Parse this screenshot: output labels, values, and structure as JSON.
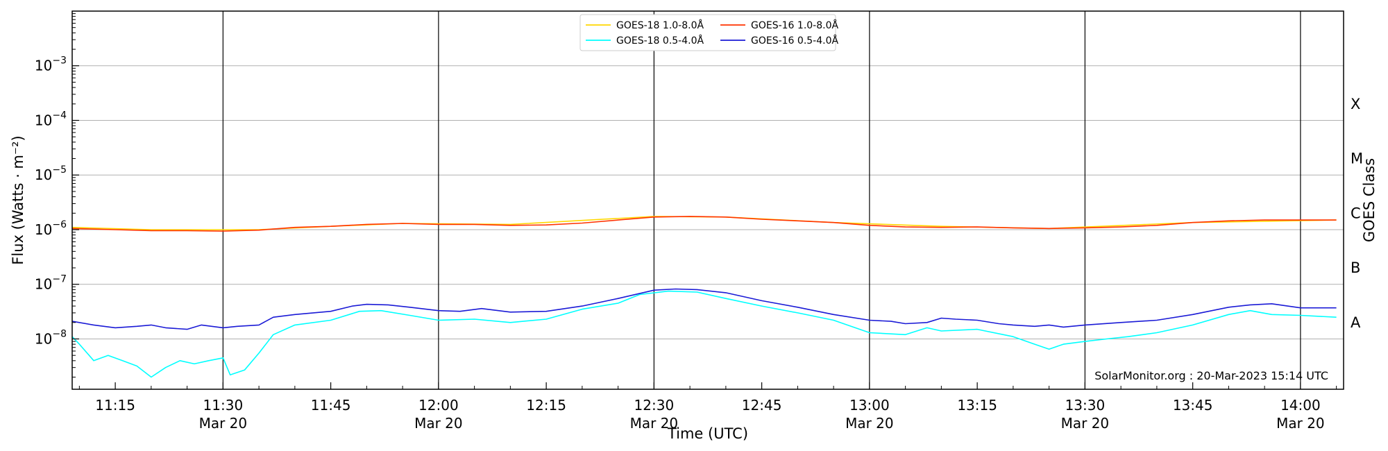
{
  "chart_data": {
    "type": "line",
    "title": "",
    "xlabel": "Time (UTC)",
    "ylabel": "Flux (Watts · m⁻²)",
    "ylabel_right": "GOES Class",
    "yscale": "log",
    "ylim": [
      1.2e-09,
      0.01
    ],
    "xlim": [
      "2023-03-20T11:09",
      "2023-03-20T14:06"
    ],
    "y_ticks": [
      {
        "value": 1e-08,
        "base": "10",
        "exp": "−8"
      },
      {
        "value": 1e-07,
        "base": "10",
        "exp": "−7"
      },
      {
        "value": 1e-06,
        "base": "10",
        "exp": "−6"
      },
      {
        "value": 1e-05,
        "base": "10",
        "exp": "−5"
      },
      {
        "value": 0.0001,
        "base": "10",
        "exp": "−4"
      },
      {
        "value": 0.001,
        "base": "10",
        "exp": "−3"
      }
    ],
    "x_ticks": [
      {
        "time": "11:15",
        "label": "11:15",
        "date": ""
      },
      {
        "time": "11:30",
        "label": "11:30",
        "date": "Mar 20"
      },
      {
        "time": "11:45",
        "label": "11:45",
        "date": ""
      },
      {
        "time": "12:00",
        "label": "12:00",
        "date": "Mar 20"
      },
      {
        "time": "12:15",
        "label": "12:15",
        "date": ""
      },
      {
        "time": "12:30",
        "label": "12:30",
        "date": "Mar 20"
      },
      {
        "time": "12:45",
        "label": "12:45",
        "date": ""
      },
      {
        "time": "13:00",
        "label": "13:00",
        "date": "Mar 20"
      },
      {
        "time": "13:15",
        "label": "13:15",
        "date": ""
      },
      {
        "time": "13:30",
        "label": "13:30",
        "date": "Mar 20"
      },
      {
        "time": "13:45",
        "label": "13:45",
        "date": ""
      },
      {
        "time": "14:00",
        "label": "14:00",
        "date": "Mar 20"
      }
    ],
    "vertical_lines": [
      "11:30",
      "12:00",
      "12:30",
      "13:00",
      "13:30",
      "14:00"
    ],
    "grid": "horizontal",
    "class_labels": [
      {
        "label": "A",
        "value": 2e-08
      },
      {
        "label": "B",
        "value": 2e-07
      },
      {
        "label": "C",
        "value": 2e-06
      },
      {
        "label": "M",
        "value": 2e-05
      },
      {
        "label": "X",
        "value": 0.0002
      }
    ],
    "legend_position": "top-center",
    "credit": "SolarMonitor.org : 20-Mar-2023 15:14 UTC",
    "series": [
      {
        "name": "GOES-18 1.0-8.0Å",
        "color": "#ffd700",
        "x": [
          "11:09",
          "11:20",
          "11:35",
          "11:45",
          "11:55",
          "12:10",
          "12:30",
          "12:40",
          "12:55",
          "13:10",
          "13:25",
          "13:45",
          "14:05"
        ],
        "y": [
          1.1e-06,
          1e-06,
          1e-06,
          1.15e-06,
          1.3e-06,
          1.25e-06,
          1.75e-06,
          1.7e-06,
          1.35e-06,
          1.15e-06,
          1.05e-06,
          1.35e-06,
          1.5e-06
        ]
      },
      {
        "name": "GOES-18 0.5-4.0Å",
        "color": "#00ffff",
        "x": [
          "11:09",
          "11:10",
          "11:12",
          "11:14",
          "11:16",
          "11:18",
          "11:20",
          "11:22",
          "11:24",
          "11:26",
          "11:28",
          "11:30",
          "11:31",
          "11:33",
          "11:35",
          "11:37",
          "11:40",
          "11:45",
          "11:49",
          "11:52",
          "11:56",
          "12:00",
          "12:05",
          "12:10",
          "12:15",
          "12:20",
          "12:25",
          "12:28",
          "12:32",
          "12:36",
          "12:40",
          "12:45",
          "12:50",
          "12:55",
          "13:00",
          "13:05",
          "13:08",
          "13:10",
          "13:15",
          "13:20",
          "13:23",
          "13:25",
          "13:27",
          "13:30",
          "13:33",
          "13:36",
          "13:40",
          "13:45",
          "13:50",
          "13:53",
          "13:56",
          "14:00",
          "14:05"
        ],
        "y": [
          1.1e-08,
          8e-09,
          4e-09,
          5e-09,
          4e-09,
          3.2e-09,
          2e-09,
          3e-09,
          4e-09,
          3.5e-09,
          4e-09,
          4.5e-09,
          2.2e-09,
          2.7e-09,
          5.5e-09,
          1.2e-08,
          1.8e-08,
          2.2e-08,
          3.2e-08,
          3.3e-08,
          2.7e-08,
          2.2e-08,
          2.3e-08,
          2e-08,
          2.3e-08,
          3.5e-08,
          4.5e-08,
          6.5e-08,
          7.5e-08,
          7.2e-08,
          5.5e-08,
          4e-08,
          3e-08,
          2.2e-08,
          1.3e-08,
          1.2e-08,
          1.6e-08,
          1.4e-08,
          1.5e-08,
          1.1e-08,
          8e-09,
          6.5e-09,
          8e-09,
          9e-09,
          1e-08,
          1.1e-08,
          1.3e-08,
          1.8e-08,
          2.8e-08,
          3.3e-08,
          2.8e-08,
          2.7e-08,
          2.5e-08
        ]
      },
      {
        "name": "GOES-16 1.0-8.0Å",
        "color": "#ff3300",
        "x": [
          "11:09",
          "11:15",
          "11:20",
          "11:25",
          "11:30",
          "11:35",
          "11:40",
          "11:45",
          "11:50",
          "11:55",
          "12:00",
          "12:05",
          "12:10",
          "12:15",
          "12:20",
          "12:25",
          "12:30",
          "12:35",
          "12:40",
          "12:45",
          "12:50",
          "12:55",
          "13:00",
          "13:05",
          "13:10",
          "13:15",
          "13:20",
          "13:25",
          "13:30",
          "13:35",
          "13:40",
          "13:45",
          "13:50",
          "13:55",
          "14:00",
          "14:05"
        ],
        "y": [
          1.05e-06,
          1e-06,
          9.6e-07,
          9.6e-07,
          9.4e-07,
          9.8e-07,
          1.1e-06,
          1.15e-06,
          1.25e-06,
          1.3e-06,
          1.25e-06,
          1.25e-06,
          1.2e-06,
          1.22e-06,
          1.32e-06,
          1.5e-06,
          1.7e-06,
          1.75e-06,
          1.7e-06,
          1.55e-06,
          1.45e-06,
          1.35e-06,
          1.2e-06,
          1.12e-06,
          1.1e-06,
          1.12e-06,
          1.08e-06,
          1.05e-06,
          1.08e-06,
          1.12e-06,
          1.2e-06,
          1.35e-06,
          1.45e-06,
          1.5e-06,
          1.5e-06,
          1.5e-06
        ]
      },
      {
        "name": "GOES-16 0.5-4.0Å",
        "color": "#1a1ad6",
        "x": [
          "11:09",
          "11:12",
          "11:15",
          "11:18",
          "11:20",
          "11:22",
          "11:25",
          "11:27",
          "11:30",
          "11:32",
          "11:35",
          "11:37",
          "11:40",
          "11:45",
          "11:48",
          "11:50",
          "11:53",
          "11:56",
          "12:00",
          "12:03",
          "12:06",
          "12:10",
          "12:15",
          "12:20",
          "12:25",
          "12:30",
          "12:33",
          "12:36",
          "12:40",
          "12:45",
          "12:50",
          "12:55",
          "13:00",
          "13:03",
          "13:05",
          "13:08",
          "13:10",
          "13:12",
          "13:15",
          "13:18",
          "13:20",
          "13:23",
          "13:25",
          "13:27",
          "13:30",
          "13:35",
          "13:40",
          "13:45",
          "13:50",
          "13:53",
          "13:56",
          "14:00",
          "14:05"
        ],
        "y": [
          2.1e-08,
          1.8e-08,
          1.6e-08,
          1.7e-08,
          1.8e-08,
          1.6e-08,
          1.5e-08,
          1.8e-08,
          1.6e-08,
          1.7e-08,
          1.8e-08,
          2.5e-08,
          2.8e-08,
          3.2e-08,
          4e-08,
          4.3e-08,
          4.2e-08,
          3.8e-08,
          3.3e-08,
          3.2e-08,
          3.6e-08,
          3.1e-08,
          3.2e-08,
          4e-08,
          5.5e-08,
          7.8e-08,
          8.2e-08,
          8e-08,
          7e-08,
          5e-08,
          3.8e-08,
          2.8e-08,
          2.2e-08,
          2.1e-08,
          1.9e-08,
          2e-08,
          2.4e-08,
          2.3e-08,
          2.2e-08,
          1.9e-08,
          1.8e-08,
          1.7e-08,
          1.8e-08,
          1.65e-08,
          1.8e-08,
          2e-08,
          2.2e-08,
          2.8e-08,
          3.8e-08,
          4.2e-08,
          4.4e-08,
          3.7e-08,
          3.7e-08
        ]
      }
    ]
  }
}
